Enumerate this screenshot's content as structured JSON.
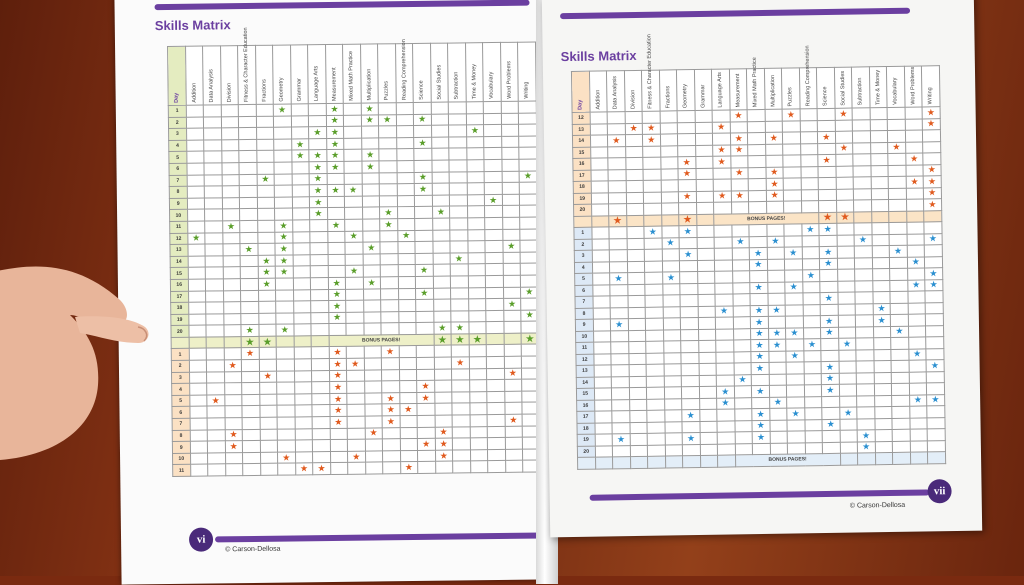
{
  "colors": {
    "purple": "#6b3fa0",
    "green": "#5a9e2a",
    "orange": "#e05a1e",
    "blue": "#2a8fd0"
  },
  "left_page": {
    "title": "Skills Matrix",
    "page_number": "vi",
    "copyright": "© Carson-Dellosa",
    "bonus_label": "BONUS PAGES!",
    "day_header": "Day"
  },
  "right_page": {
    "title": "Skills Matrix",
    "page_number": "vii",
    "copyright": "© Carson-Dellosa",
    "bonus_label": "BONUS PAGES!",
    "day_header": "Day"
  },
  "columns": [
    "Addition",
    "Data Analysis",
    "Division",
    "Fitness & Character Education",
    "Fractions",
    "Geometry",
    "Grammar",
    "Language Arts",
    "Measurement",
    "Mixed Math Practice",
    "Multiplication",
    "Puzzles",
    "Reading Comprehension",
    "Science",
    "Social Studies",
    "Subtraction",
    "Time & Money",
    "Vocabulary",
    "Word Problems",
    "Writing"
  ],
  "left_stars": {
    "green": [
      [
        1,
        5
      ],
      [
        1,
        8
      ],
      [
        1,
        10
      ],
      [
        2,
        8
      ],
      [
        2,
        10
      ],
      [
        2,
        11
      ],
      [
        2,
        13
      ],
      [
        3,
        7
      ],
      [
        3,
        8
      ],
      [
        3,
        16
      ],
      [
        4,
        6
      ],
      [
        4,
        8
      ],
      [
        4,
        13
      ],
      [
        5,
        6
      ],
      [
        5,
        7
      ],
      [
        5,
        8
      ],
      [
        5,
        10
      ],
      [
        6,
        7
      ],
      [
        6,
        8
      ],
      [
        6,
        10
      ],
      [
        7,
        4
      ],
      [
        7,
        7
      ],
      [
        7,
        13
      ],
      [
        7,
        19
      ],
      [
        8,
        7
      ],
      [
        8,
        8
      ],
      [
        8,
        9
      ],
      [
        8,
        13
      ],
      [
        9,
        7
      ],
      [
        9,
        17
      ],
      [
        10,
        7
      ],
      [
        10,
        11
      ],
      [
        10,
        14
      ],
      [
        11,
        2
      ],
      [
        11,
        5
      ],
      [
        11,
        8
      ],
      [
        11,
        11
      ],
      [
        12,
        0
      ],
      [
        12,
        5
      ],
      [
        12,
        9
      ],
      [
        12,
        12
      ],
      [
        13,
        3
      ],
      [
        13,
        5
      ],
      [
        13,
        10
      ],
      [
        13,
        18
      ],
      [
        14,
        4
      ],
      [
        14,
        5
      ],
      [
        14,
        15
      ],
      [
        15,
        4
      ],
      [
        15,
        5
      ],
      [
        15,
        9
      ],
      [
        15,
        13
      ],
      [
        16,
        4
      ],
      [
        16,
        8
      ],
      [
        16,
        10
      ],
      [
        17,
        8
      ],
      [
        17,
        13
      ],
      [
        17,
        19
      ],
      [
        18,
        8
      ],
      [
        18,
        18
      ],
      [
        19,
        8
      ],
      [
        19,
        19
      ],
      [
        20,
        3
      ],
      [
        20,
        5
      ],
      [
        20,
        14
      ],
      [
        20,
        15
      ]
    ],
    "orange": [
      [
        1,
        3
      ],
      [
        1,
        8
      ],
      [
        1,
        11
      ],
      [
        2,
        2
      ],
      [
        2,
        8
      ],
      [
        2,
        9
      ],
      [
        2,
        15
      ],
      [
        3,
        4
      ],
      [
        3,
        8
      ],
      [
        3,
        18
      ],
      [
        4,
        8
      ],
      [
        4,
        13
      ],
      [
        5,
        1
      ],
      [
        5,
        8
      ],
      [
        5,
        11
      ],
      [
        5,
        13
      ],
      [
        6,
        8
      ],
      [
        6,
        11
      ],
      [
        6,
        12
      ],
      [
        7,
        8
      ],
      [
        7,
        11
      ],
      [
        7,
        18
      ],
      [
        8,
        2
      ],
      [
        8,
        10
      ],
      [
        8,
        14
      ],
      [
        9,
        2
      ],
      [
        9,
        13
      ],
      [
        9,
        14
      ],
      [
        10,
        5
      ],
      [
        10,
        9
      ],
      [
        10,
        14
      ],
      [
        11,
        6
      ],
      [
        11,
        7
      ],
      [
        11,
        12
      ]
    ],
    "bonus_green": [
      3,
      4,
      14,
      15,
      16,
      19
    ]
  },
  "right_stars": {
    "orange": [
      [
        12,
        8
      ],
      [
        12,
        11
      ],
      [
        12,
        14
      ],
      [
        12,
        19
      ],
      [
        13,
        2
      ],
      [
        13,
        3
      ],
      [
        13,
        7
      ],
      [
        13,
        19
      ],
      [
        14,
        1
      ],
      [
        14,
        3
      ],
      [
        14,
        8
      ],
      [
        14,
        10
      ],
      [
        14,
        13
      ],
      [
        15,
        7
      ],
      [
        15,
        8
      ],
      [
        15,
        14
      ],
      [
        15,
        17
      ],
      [
        16,
        5
      ],
      [
        16,
        7
      ],
      [
        16,
        13
      ],
      [
        16,
        18
      ],
      [
        17,
        5
      ],
      [
        17,
        8
      ],
      [
        17,
        10
      ],
      [
        17,
        19
      ],
      [
        18,
        10
      ],
      [
        18,
        18
      ],
      [
        18,
        19
      ],
      [
        19,
        5
      ],
      [
        19,
        7
      ],
      [
        19,
        8
      ],
      [
        19,
        10
      ],
      [
        19,
        19
      ],
      [
        20,
        19
      ]
    ],
    "blue": [
      [
        1,
        3
      ],
      [
        1,
        5
      ],
      [
        1,
        12
      ],
      [
        1,
        13
      ],
      [
        2,
        4
      ],
      [
        2,
        8
      ],
      [
        2,
        10
      ],
      [
        2,
        15
      ],
      [
        2,
        19
      ],
      [
        3,
        5
      ],
      [
        3,
        9
      ],
      [
        3,
        11
      ],
      [
        3,
        13
      ],
      [
        3,
        17
      ],
      [
        4,
        9
      ],
      [
        4,
        13
      ],
      [
        4,
        18
      ],
      [
        5,
        1
      ],
      [
        5,
        4
      ],
      [
        5,
        12
      ],
      [
        5,
        19
      ],
      [
        6,
        9
      ],
      [
        6,
        11
      ],
      [
        6,
        18
      ],
      [
        6,
        19
      ],
      [
        7,
        13
      ],
      [
        8,
        7
      ],
      [
        8,
        9
      ],
      [
        8,
        10
      ],
      [
        8,
        16
      ],
      [
        9,
        1
      ],
      [
        9,
        9
      ],
      [
        9,
        13
      ],
      [
        9,
        16
      ],
      [
        10,
        9
      ],
      [
        10,
        10
      ],
      [
        10,
        11
      ],
      [
        10,
        13
      ],
      [
        10,
        17
      ],
      [
        11,
        9
      ],
      [
        11,
        10
      ],
      [
        11,
        12
      ],
      [
        11,
        14
      ],
      [
        12,
        9
      ],
      [
        12,
        11
      ],
      [
        12,
        18
      ],
      [
        13,
        9
      ],
      [
        13,
        13
      ],
      [
        13,
        19
      ],
      [
        14,
        8
      ],
      [
        14,
        13
      ],
      [
        15,
        7
      ],
      [
        15,
        9
      ],
      [
        15,
        13
      ],
      [
        16,
        7
      ],
      [
        16,
        10
      ],
      [
        16,
        18
      ],
      [
        16,
        19
      ],
      [
        17,
        5
      ],
      [
        17,
        9
      ],
      [
        17,
        11
      ],
      [
        17,
        14
      ],
      [
        18,
        9
      ],
      [
        18,
        13
      ],
      [
        19,
        1
      ],
      [
        19,
        5
      ],
      [
        19,
        9
      ],
      [
        19,
        15
      ],
      [
        20,
        15
      ]
    ],
    "bonus_orange": [
      1,
      5,
      13,
      14
    ]
  }
}
